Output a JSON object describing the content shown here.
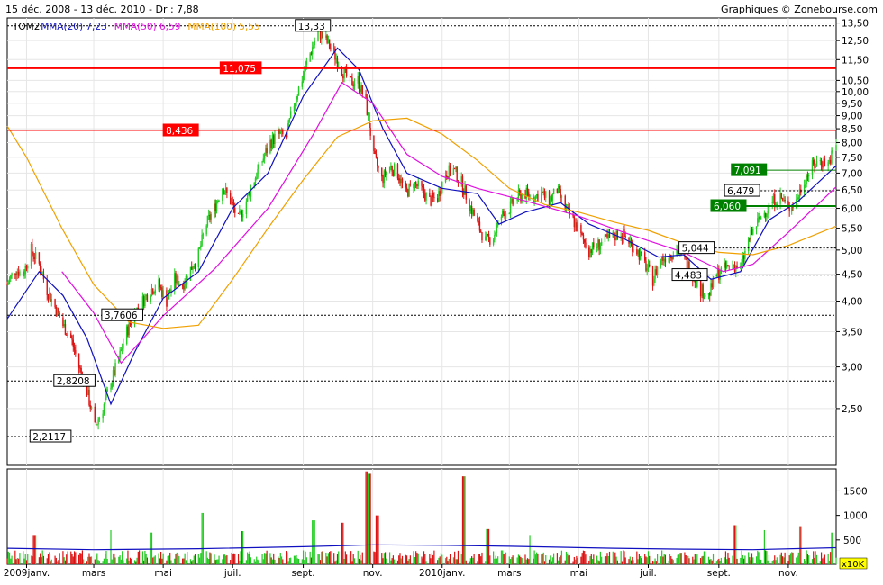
{
  "header": {
    "period": "15 déc. 2008 - 13 déc. 2010 - Dr : 7,88",
    "credit": "Graphiques © Zonebourse.com"
  },
  "chart_data": {
    "type": "candlestick",
    "ticker": "TOM2",
    "legend": [
      {
        "name": "TOM2",
        "value": "",
        "color": "#000000"
      },
      {
        "name": "MMA(20)",
        "value": "7,23",
        "color": "#1010c0"
      },
      {
        "name": "MMA(50)",
        "value": "6,59",
        "color": "#e010e0"
      },
      {
        "name": "MMA(100)",
        "value": "5,55",
        "color": "#f0a000"
      }
    ],
    "y_scale": "log",
    "ylim": [
      1.95,
      13.8
    ],
    "price_ticks": [
      "2,50",
      "3,00",
      "3,50",
      "4,00",
      "4,50",
      "5,00",
      "5,50",
      "6,00",
      "6,50",
      "7,00",
      "7,50",
      "8,00",
      "8,50",
      "9,00",
      "9,50",
      "10,00",
      "10,50",
      "11,50",
      "12,50",
      "13,50"
    ],
    "x_start": "2008-12-15",
    "x_end": "2010-12-13",
    "x_ticks": [
      {
        "label": "2009janv.",
        "date": "2009-01-01"
      },
      {
        "label": "mars",
        "date": "2009-03-01"
      },
      {
        "label": "mai",
        "date": "2009-05-01"
      },
      {
        "label": "juil.",
        "date": "2009-07-01"
      },
      {
        "label": "sept.",
        "date": "2009-09-01"
      },
      {
        "label": "nov.",
        "date": "2009-11-01"
      },
      {
        "label": "2010janv.",
        "date": "2010-01-01"
      },
      {
        "label": "mars",
        "date": "2010-03-01"
      },
      {
        "label": "mai",
        "date": "2010-05-01"
      },
      {
        "label": "juil.",
        "date": "2010-07-01"
      },
      {
        "label": "sept.",
        "date": "2010-09-01"
      },
      {
        "label": "nov.",
        "date": "2010-11-01"
      }
    ],
    "price_anchors": [
      [
        "2008-12-15",
        4.3
      ],
      [
        "2008-12-22",
        4.6
      ],
      [
        "2008-12-29",
        4.5
      ],
      [
        "2009-01-05",
        5.0
      ],
      [
        "2009-01-12",
        4.7
      ],
      [
        "2009-01-19",
        4.2
      ],
      [
        "2009-01-26",
        3.9
      ],
      [
        "2009-02-02",
        3.6
      ],
      [
        "2009-02-09",
        3.4
      ],
      [
        "2009-02-16",
        3.0
      ],
      [
        "2009-02-23",
        2.7
      ],
      [
        "2009-03-02",
        2.3
      ],
      [
        "2009-03-09",
        2.5
      ],
      [
        "2009-03-16",
        2.8
      ],
      [
        "2009-03-23",
        3.1
      ],
      [
        "2009-03-30",
        3.5
      ],
      [
        "2009-04-06",
        3.8
      ],
      [
        "2009-04-13",
        4.0
      ],
      [
        "2009-04-20",
        4.2
      ],
      [
        "2009-04-27",
        4.3
      ],
      [
        "2009-05-04",
        4.0
      ],
      [
        "2009-05-11",
        4.4
      ],
      [
        "2009-05-18",
        4.3
      ],
      [
        "2009-05-25",
        4.6
      ],
      [
        "2009-06-01",
        4.9
      ],
      [
        "2009-06-08",
        5.6
      ],
      [
        "2009-06-15",
        6.0
      ],
      [
        "2009-06-22",
        6.6
      ],
      [
        "2009-06-29",
        6.2
      ],
      [
        "2009-07-06",
        5.7
      ],
      [
        "2009-07-13",
        6.2
      ],
      [
        "2009-07-20",
        6.8
      ],
      [
        "2009-07-27",
        7.4
      ],
      [
        "2009-08-03",
        8.0
      ],
      [
        "2009-08-10",
        8.3
      ],
      [
        "2009-08-17",
        8.2
      ],
      [
        "2009-08-24",
        9.5
      ],
      [
        "2009-08-31",
        10.6
      ],
      [
        "2009-09-07",
        11.8
      ],
      [
        "2009-09-14",
        13.0
      ],
      [
        "2009-09-21",
        12.5
      ],
      [
        "2009-09-28",
        11.8
      ],
      [
        "2009-10-05",
        11.0
      ],
      [
        "2009-10-12",
        10.4
      ],
      [
        "2009-10-19",
        10.5
      ],
      [
        "2009-10-26",
        9.5
      ],
      [
        "2009-11-02",
        7.5
      ],
      [
        "2009-11-09",
        6.8
      ],
      [
        "2009-11-16",
        7.2
      ],
      [
        "2009-11-23",
        7.0
      ],
      [
        "2009-11-30",
        6.4
      ],
      [
        "2009-12-07",
        6.7
      ],
      [
        "2009-12-14",
        6.5
      ],
      [
        "2009-12-21",
        6.2
      ],
      [
        "2009-12-28",
        6.3
      ],
      [
        "2010-01-04",
        7.0
      ],
      [
        "2010-01-11",
        7.1
      ],
      [
        "2010-01-18",
        6.7
      ],
      [
        "2010-01-25",
        6.1
      ],
      [
        "2010-02-01",
        5.6
      ],
      [
        "2010-02-08",
        5.2
      ],
      [
        "2010-02-15",
        5.3
      ],
      [
        "2010-02-22",
        5.8
      ],
      [
        "2010-03-01",
        6.0
      ],
      [
        "2010-03-08",
        6.3
      ],
      [
        "2010-03-15",
        6.4
      ],
      [
        "2010-03-22",
        6.3
      ],
      [
        "2010-03-29",
        6.4
      ],
      [
        "2010-04-05",
        6.2
      ],
      [
        "2010-04-12",
        6.5
      ],
      [
        "2010-04-19",
        6.0
      ],
      [
        "2010-04-26",
        5.7
      ],
      [
        "2010-05-03",
        5.3
      ],
      [
        "2010-05-10",
        5.0
      ],
      [
        "2010-05-17",
        5.1
      ],
      [
        "2010-05-24",
        5.2
      ],
      [
        "2010-05-31",
        5.3
      ],
      [
        "2010-06-07",
        5.4
      ],
      [
        "2010-06-14",
        5.2
      ],
      [
        "2010-06-21",
        5.0
      ],
      [
        "2010-06-28",
        4.7
      ],
      [
        "2010-07-05",
        4.4
      ],
      [
        "2010-07-12",
        4.8
      ],
      [
        "2010-07-19",
        4.9
      ],
      [
        "2010-07-26",
        5.0
      ],
      [
        "2010-08-02",
        4.8
      ],
      [
        "2010-08-09",
        4.5
      ],
      [
        "2010-08-16",
        4.2
      ],
      [
        "2010-08-23",
        4.1
      ],
      [
        "2010-08-30",
        4.5
      ],
      [
        "2010-09-06",
        4.6
      ],
      [
        "2010-09-13",
        4.7
      ],
      [
        "2010-09-20",
        4.6
      ],
      [
        "2010-09-27",
        5.2
      ],
      [
        "2010-10-04",
        5.6
      ],
      [
        "2010-10-11",
        5.9
      ],
      [
        "2010-10-18",
        6.2
      ],
      [
        "2010-10-25",
        6.3
      ],
      [
        "2010-11-01",
        6.0
      ],
      [
        "2010-11-08",
        6.2
      ],
      [
        "2010-11-15",
        6.8
      ],
      [
        "2010-11-22",
        7.2
      ],
      [
        "2010-11-29",
        7.4
      ],
      [
        "2010-12-06",
        7.3
      ],
      [
        "2010-12-13",
        7.9
      ]
    ],
    "ma_lines": [
      {
        "name": "MMA(20)",
        "color": "#1010c0",
        "points": [
          [
            "2008-12-15",
            3.7
          ],
          [
            "2009-01-12",
            4.55
          ],
          [
            "2009-02-02",
            4.1
          ],
          [
            "2009-02-23",
            3.4
          ],
          [
            "2009-03-16",
            2.55
          ],
          [
            "2009-04-06",
            3.2
          ],
          [
            "2009-05-01",
            4.05
          ],
          [
            "2009-06-01",
            4.55
          ],
          [
            "2009-07-01",
            6.0
          ],
          [
            "2009-08-01",
            7.0
          ],
          [
            "2009-09-01",
            9.8
          ],
          [
            "2009-10-01",
            12.1
          ],
          [
            "2009-10-20",
            11.0
          ],
          [
            "2009-11-10",
            8.5
          ],
          [
            "2009-12-01",
            7.0
          ],
          [
            "2010-01-01",
            6.55
          ],
          [
            "2010-02-01",
            6.4
          ],
          [
            "2010-02-20",
            5.6
          ],
          [
            "2010-03-15",
            5.9
          ],
          [
            "2010-04-15",
            6.15
          ],
          [
            "2010-05-10",
            5.6
          ],
          [
            "2010-06-10",
            5.25
          ],
          [
            "2010-07-10",
            4.85
          ],
          [
            "2010-08-01",
            4.9
          ],
          [
            "2010-08-25",
            4.4
          ],
          [
            "2010-09-20",
            4.55
          ],
          [
            "2010-10-15",
            5.7
          ],
          [
            "2010-11-10",
            6.2
          ],
          [
            "2010-12-13",
            7.23
          ]
        ]
      },
      {
        "name": "MMA(50)",
        "color": "#e010e0",
        "points": [
          [
            "2009-02-01",
            4.55
          ],
          [
            "2009-03-01",
            3.8
          ],
          [
            "2009-03-25",
            3.05
          ],
          [
            "2009-05-01",
            3.75
          ],
          [
            "2009-06-15",
            4.6
          ],
          [
            "2009-08-01",
            6.0
          ],
          [
            "2009-09-10",
            8.3
          ],
          [
            "2009-10-05",
            10.4
          ],
          [
            "2009-11-01",
            9.5
          ],
          [
            "2009-12-01",
            7.6
          ],
          [
            "2010-01-01",
            6.9
          ],
          [
            "2010-02-01",
            6.55
          ],
          [
            "2010-03-15",
            6.2
          ],
          [
            "2010-05-01",
            5.8
          ],
          [
            "2010-06-15",
            5.35
          ],
          [
            "2010-08-01",
            4.95
          ],
          [
            "2010-09-05",
            4.55
          ],
          [
            "2010-10-01",
            4.7
          ],
          [
            "2010-11-01",
            5.4
          ],
          [
            "2010-12-13",
            6.59
          ]
        ]
      },
      {
        "name": "MMA(100)",
        "color": "#f0a000",
        "points": [
          [
            "2008-12-15",
            8.6
          ],
          [
            "2009-01-01",
            7.5
          ],
          [
            "2009-02-01",
            5.5
          ],
          [
            "2009-03-01",
            4.3
          ],
          [
            "2009-04-01",
            3.65
          ],
          [
            "2009-05-01",
            3.55
          ],
          [
            "2009-06-01",
            3.6
          ],
          [
            "2009-07-01",
            4.4
          ],
          [
            "2009-08-01",
            5.5
          ],
          [
            "2009-09-01",
            6.8
          ],
          [
            "2009-10-01",
            8.2
          ],
          [
            "2009-11-01",
            8.8
          ],
          [
            "2009-12-01",
            8.9
          ],
          [
            "2010-01-01",
            8.3
          ],
          [
            "2010-02-01",
            7.4
          ],
          [
            "2010-03-01",
            6.55
          ],
          [
            "2010-04-01",
            6.1
          ],
          [
            "2010-05-01",
            5.9
          ],
          [
            "2010-06-01",
            5.65
          ],
          [
            "2010-07-01",
            5.45
          ],
          [
            "2010-08-01",
            5.15
          ],
          [
            "2010-09-01",
            4.95
          ],
          [
            "2010-10-01",
            4.9
          ],
          [
            "2010-11-01",
            5.1
          ],
          [
            "2010-12-13",
            5.55
          ]
        ]
      }
    ],
    "levels": [
      {
        "label": "13,33",
        "value": 13.33,
        "style": "dashed",
        "box": "white",
        "at": "2009-08-25"
      },
      {
        "label": "11,075",
        "value": 11.075,
        "style": "solid",
        "color": "#ff0000",
        "box": "red",
        "at": "2009-06-20"
      },
      {
        "label": "8,436",
        "value": 8.436,
        "style": "thin",
        "color": "#ff0000",
        "box": "red",
        "at": "2009-05-01"
      },
      {
        "label": "7,091",
        "value": 7.091,
        "style": "thin",
        "color": "#008000",
        "box": "green",
        "at": "2010-09-12",
        "line_from": "2010-09-12"
      },
      {
        "label": "6,479",
        "value": 6.479,
        "style": "dashed",
        "box": "white",
        "at": "2010-09-06",
        "line_from": "2010-09-06"
      },
      {
        "label": "6,060",
        "value": 6.06,
        "style": "solid",
        "color": "#008000",
        "box": "green",
        "at": "2010-08-25",
        "line_from": "2010-08-25"
      },
      {
        "label": "5,044",
        "value": 5.044,
        "style": "dashed",
        "box": "white",
        "at": "2010-07-28",
        "line_from": "2010-07-28"
      },
      {
        "label": "4,483",
        "value": 4.483,
        "style": "dashed",
        "box": "white",
        "at": "2010-07-22",
        "line_from": "2010-07-22"
      },
      {
        "label": "3,7606",
        "value": 3.7606,
        "style": "dashed",
        "box": "white",
        "at": "2009-03-08"
      },
      {
        "label": "2,8208",
        "value": 2.8208,
        "style": "dashed",
        "box": "white",
        "at": "2009-01-25"
      },
      {
        "label": "2,2117",
        "value": 2.2117,
        "style": "dashed",
        "box": "white",
        "at": "2009-01-04"
      }
    ],
    "volume": {
      "unit_label": "x10K",
      "ticks": [
        "500",
        "1000",
        "1500"
      ],
      "ylim": [
        0,
        1950
      ],
      "base": 160,
      "average_line": [
        [
          "2008-12-15",
          330
        ],
        [
          "2009-03-01",
          300
        ],
        [
          "2009-06-01",
          320
        ],
        [
          "2009-09-01",
          360
        ],
        [
          "2009-11-01",
          400
        ],
        [
          "2010-01-01",
          390
        ],
        [
          "2010-03-01",
          370
        ],
        [
          "2010-06-01",
          330
        ],
        [
          "2010-08-01",
          310
        ],
        [
          "2010-10-01",
          300
        ],
        [
          "2010-12-13",
          340
        ]
      ],
      "spikes": [
        [
          "2009-01-08",
          600
        ],
        [
          "2009-03-15",
          700
        ],
        [
          "2009-04-20",
          650
        ],
        [
          "2009-06-05",
          1050
        ],
        [
          "2009-07-10",
          680
        ],
        [
          "2009-09-10",
          900
        ],
        [
          "2009-10-05",
          850
        ],
        [
          "2009-10-27",
          1900
        ],
        [
          "2009-10-29",
          1850
        ],
        [
          "2009-11-05",
          1000
        ],
        [
          "2010-01-20",
          1800
        ],
        [
          "2010-02-10",
          720
        ],
        [
          "2010-03-20",
          600
        ],
        [
          "2010-09-15",
          800
        ],
        [
          "2010-10-10",
          700
        ],
        [
          "2010-11-12",
          780
        ],
        [
          "2010-12-10",
          650
        ]
      ]
    }
  }
}
